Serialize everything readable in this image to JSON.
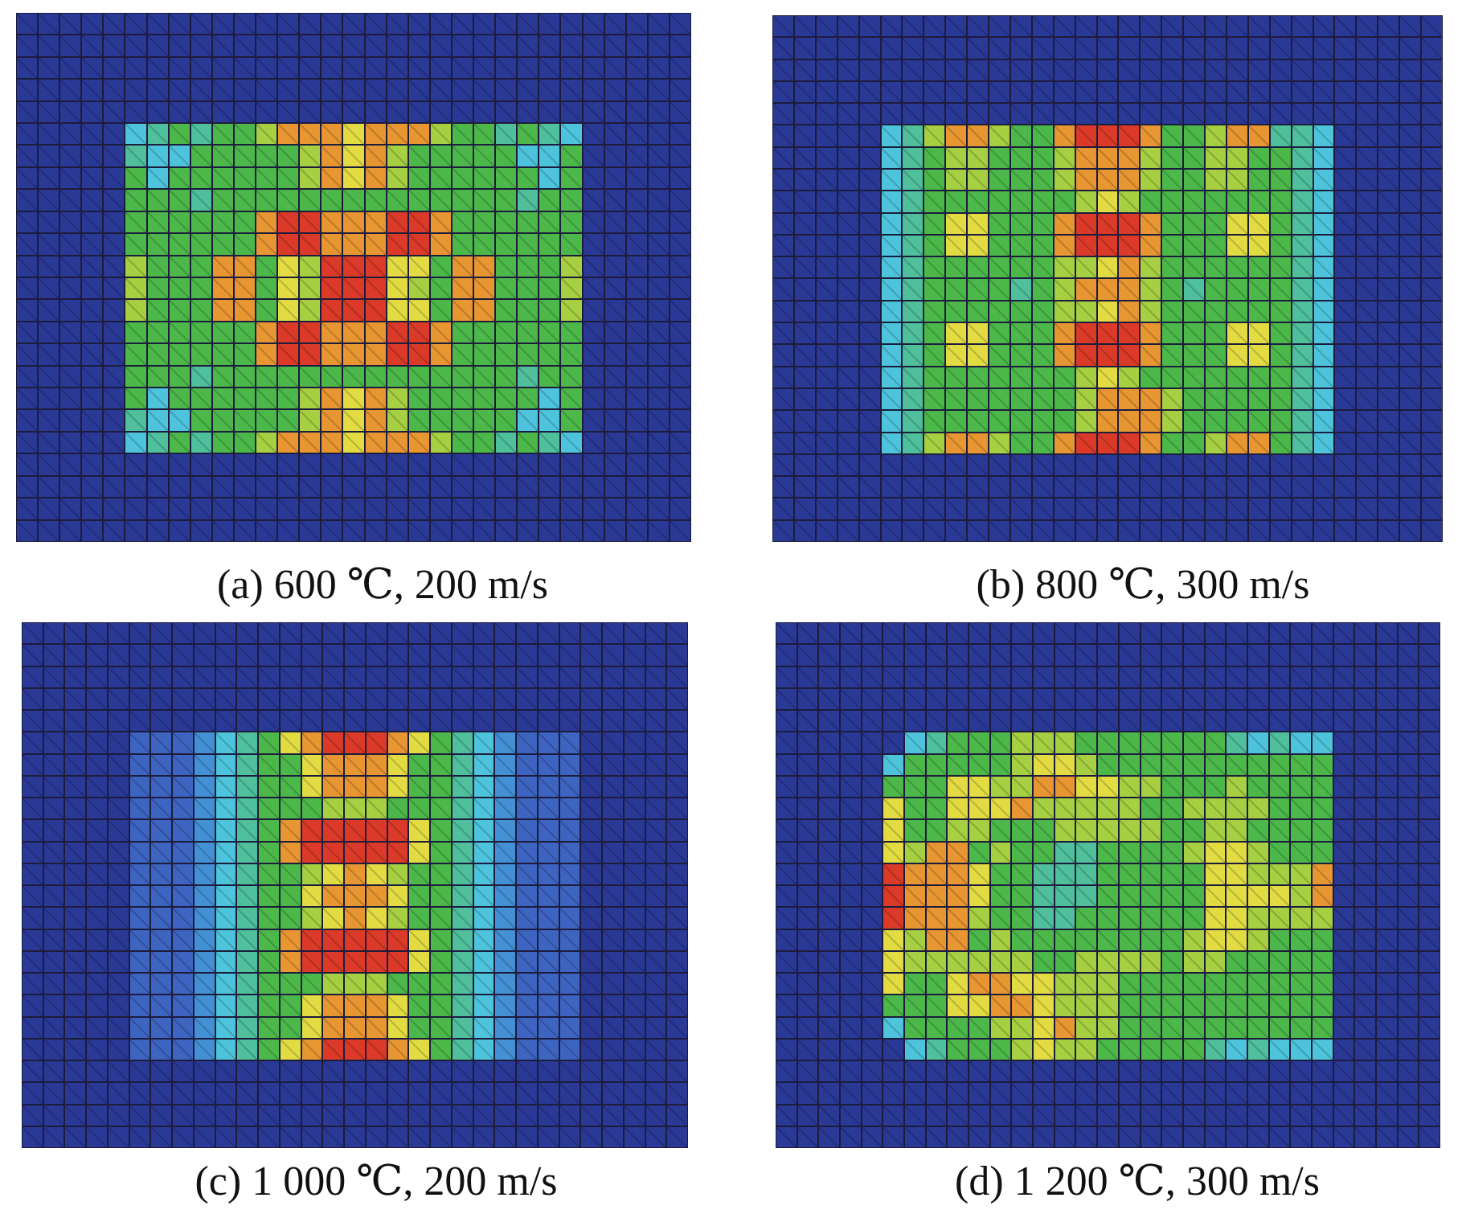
{
  "colormap": {
    "B": "#2a3896",
    "b": "#3d64c0",
    "s": "#4490d4",
    "c": "#4ec4dc",
    "t": "#4fbf9c",
    "g": "#4cb84a",
    "l": "#a6d042",
    "y": "#e2dc42",
    "o": "#e89632",
    "r": "#dc3a28"
  },
  "panels": [
    {
      "id": "a",
      "caption": "(a) 600 ℃, 200 m/s",
      "field": [
        "ctgtggloooyooolggtgtc",
        "tccgggggloyolgggggccg",
        "gcggggggloyolggggggcg",
        "gggtggggggggggggggtgg",
        "ggggggorrooorrogggggg",
        "ggggggorrooorrogggggg",
        "lgggoogylrrryygoogggl",
        "lgggoogylrrrylgoogggl",
        "lgggoogylrrryygoogggl",
        "ggggggorrooorrogggggg",
        "ggggggorrooorrogggggg",
        "gggtggggggggggggggtgg",
        "gcggggggloyolggggggcg",
        "tccgggggloyolgggggccg",
        "ctgtggloooyooolggtgtc"
      ]
    },
    {
      "id": "b",
      "caption": "(b) 800 ℃, 300 m/s",
      "field": [
        "ctloolggorrroggloottc",
        "ctgllggglooolggllggtc",
        "ctgllggglooolggllggtc",
        "ctggggggglylgggggggtc",
        "ctgyygggorrrogggyygtc",
        "ctgyygggorrrogggyygtc",
        "ctggggggllyolggggggtc",
        "ctggggtglooolgtggggtc",
        "ctggggggllyolggggggtc",
        "ctgyygggorrrogggyygtc",
        "ctgyygggorrrogggyygtc",
        "ctggggggglylgggggggtc",
        "ctggggggglooolgggggtc",
        "ctggggggglooolgggggtc",
        "ctloolggorrroggloogtc"
      ]
    },
    {
      "id": "c",
      "caption": "(c) 1 000 ℃, 200 m/s",
      "field": [
        "bbbsctgyorrroygtcsbbb",
        "bbbsctggyoooyggtcsbbb",
        "bbbsctggyoooyggtcsbbb",
        "bbbsctggglllgggtcsbbb",
        "bbbsctgorrrrrygtcsbbb",
        "bbbsctgorrrrrygtcsbbb",
        "bbbsctgglyoylggtcsbbb",
        "bbbsctggyoooyggtcsbbb",
        "bbbsctgglyoylggtcsbbb",
        "bbbsctgorrrrrygtcsbbb",
        "bbbsctgorrrrrygtcsbbb",
        "bbbsctggglllgggtcsbbb",
        "bbbsctggyoooyggtcsbbb",
        "bbbsctggyoooyggtcsbbb",
        "bbbsctgyorrroygtcsbbb"
      ]
    },
    {
      "id": "d",
      "caption": "(d) 1 200 ℃, 300 m/s",
      "field": [
        "Bctggglllgggggggtctcc",
        "cggggglyylggggggggggg",
        "gggyyllooyyllggglgggg",
        "yggyyyolllllggllllggg",
        "yggllggglllllggllgggg",
        "ylooglggttgggglyylggg",
        "roooyggtttgggggyylllo",
        "roooyggtttgggggyyyylo",
        "rooolggttggggggyyllll",
        "ylooglgggggggglyylggg",
        "yllllllggllllgllggggg",
        "yggyooyylllgggggggggg",
        "gggyyooylllgggggggggg",
        "cggggllyollgggggggggg",
        "Bctggglyllgggggtctccc"
      ]
    }
  ]
}
